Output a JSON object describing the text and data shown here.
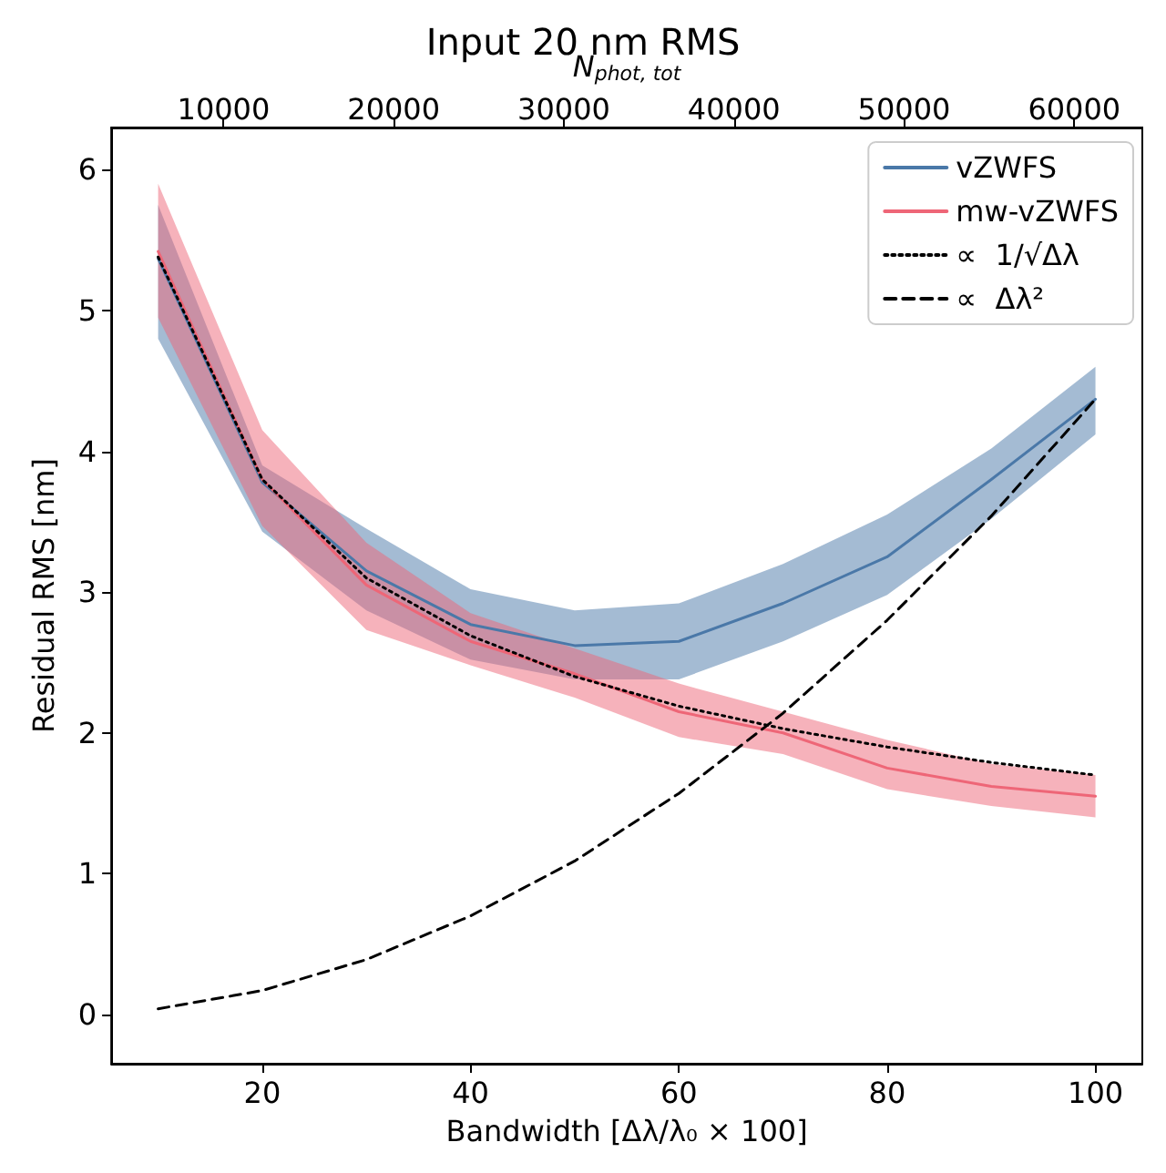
{
  "chart_data": {
    "type": "line",
    "title": "Input 20 nm RMS",
    "xlabel": "Bandwidth [Δλ/λ₀ × 100]",
    "ylabel": "Residual RMS [nm]",
    "x2label": "N$_{phot, tot}$",
    "x": [
      10,
      20,
      30,
      40,
      50,
      60,
      70,
      80,
      90,
      100
    ],
    "series": [
      {
        "name": "vZWFS",
        "color": "#4a78a8",
        "line_style": "solid",
        "values": [
          5.37,
          3.78,
          3.15,
          2.77,
          2.62,
          2.65,
          2.92,
          3.25,
          3.8,
          4.37
        ],
        "lower": [
          4.8,
          3.43,
          2.87,
          2.52,
          2.38,
          2.38,
          2.65,
          2.98,
          3.52,
          4.12
        ],
        "upper": [
          5.75,
          3.9,
          3.45,
          3.02,
          2.87,
          2.92,
          3.2,
          3.55,
          4.02,
          4.6
        ]
      },
      {
        "name": "mw-vZWFS",
        "color": "#ee6677",
        "line_style": "solid",
        "values": [
          5.42,
          3.8,
          3.05,
          2.65,
          2.42,
          2.15,
          2.0,
          1.75,
          1.62,
          1.55
        ],
        "lower": [
          4.95,
          3.47,
          2.73,
          2.48,
          2.25,
          1.97,
          1.85,
          1.6,
          1.48,
          1.4
        ],
        "upper": [
          5.9,
          4.15,
          3.35,
          2.85,
          2.6,
          2.35,
          2.15,
          1.95,
          1.78,
          1.7
        ]
      },
      {
        "name": "∝  1/√Δλ",
        "color": "#000000",
        "line_style": "dotted",
        "values": [
          5.38,
          3.8,
          3.1,
          2.69,
          2.4,
          2.19,
          2.03,
          1.9,
          1.79,
          1.7
        ]
      },
      {
        "name": "∝  Δλ²",
        "color": "#000000",
        "line_style": "dashed",
        "values": [
          0.04,
          0.17,
          0.39,
          0.7,
          1.09,
          1.57,
          2.14,
          2.8,
          3.54,
          4.37
        ]
      }
    ],
    "xlim": [
      5.5,
      104.5
    ],
    "xticks": [
      20,
      40,
      60,
      80,
      100
    ],
    "x2lim": [
      3400,
      64000
    ],
    "x2ticks": [
      10000,
      20000,
      30000,
      40000,
      50000,
      60000
    ],
    "ylim": [
      -0.35,
      6.3
    ],
    "yticks": [
      0,
      1,
      2,
      3,
      4,
      5,
      6
    ],
    "grid": false,
    "legend": "top right",
    "marker": "none"
  }
}
